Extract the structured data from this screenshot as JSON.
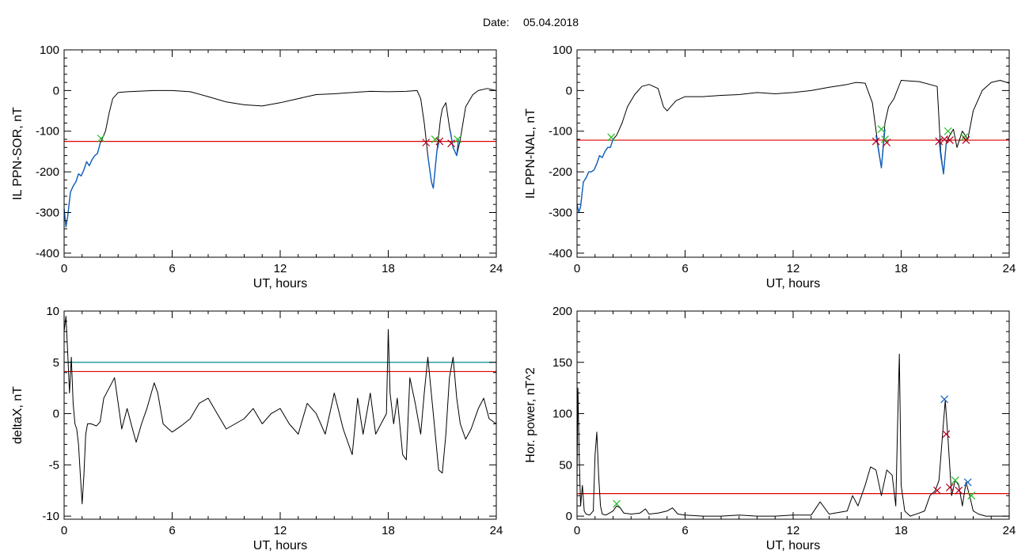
{
  "figure": {
    "title_prefix": "Date:",
    "title_date": "05.04.2018"
  },
  "colors": {
    "signal": "#000000",
    "threshold": "#e00000",
    "threshold2": "#008b8b",
    "segment": "#1060c0",
    "marker_green": "#22bb22",
    "marker_red": "#b00020",
    "marker_blue": "#1060c0"
  },
  "chart_data": [
    {
      "type": "line",
      "id": "p1",
      "xlabel": "UT, hours",
      "ylabel": "IL PPN-SOR, nT",
      "xlim": [
        0,
        24
      ],
      "ylim": [
        -410,
        100
      ],
      "xticks": [
        0,
        6,
        12,
        18,
        24
      ],
      "yticks": [
        100,
        0,
        -100,
        -200,
        -300,
        -400
      ],
      "threshold": -125,
      "series": [
        {
          "role": "signal",
          "x": [
            0,
            0.1,
            0.2,
            0.35,
            0.5,
            0.65,
            0.8,
            0.95,
            1.1,
            1.25,
            1.4,
            1.55,
            1.7,
            1.85,
            2.0,
            2.1,
            2.3,
            2.5,
            2.7,
            3.0,
            3.5,
            4,
            5,
            6,
            7,
            8,
            9,
            10,
            11,
            12,
            13,
            14,
            15,
            16,
            17,
            18,
            19,
            19.6,
            19.8,
            20.0,
            20.2,
            20.4,
            20.5,
            20.7,
            20.9,
            21.0,
            21.2,
            21.4,
            21.6,
            21.8,
            22.0,
            22.3,
            22.7,
            23.0,
            23.5,
            24.0
          ],
          "y": [
            -290,
            -335,
            -310,
            -250,
            -235,
            -225,
            -205,
            -210,
            -195,
            -175,
            -185,
            -170,
            -160,
            -155,
            -130,
            -120,
            -100,
            -55,
            -20,
            -5,
            -3,
            -2,
            0,
            0,
            -3,
            -15,
            -28,
            -35,
            -38,
            -30,
            -20,
            -10,
            -8,
            -5,
            -2,
            -3,
            -2,
            0,
            -20,
            -80,
            -160,
            -225,
            -240,
            -150,
            -70,
            -45,
            -30,
            -90,
            -140,
            -160,
            -120,
            -40,
            -10,
            0,
            5,
            0
          ]
        },
        {
          "role": "segment",
          "x": [
            0,
            0.1,
            0.2,
            0.35,
            0.5,
            0.65,
            0.8,
            0.95,
            1.1,
            1.25,
            1.4,
            1.55,
            1.7,
            1.85,
            2.0
          ],
          "y": [
            -290,
            -335,
            -310,
            -250,
            -235,
            -225,
            -205,
            -210,
            -195,
            -175,
            -185,
            -170,
            -160,
            -155,
            -130
          ]
        },
        {
          "role": "segment",
          "x": [
            20.2,
            20.4,
            20.5,
            20.7,
            20.85
          ],
          "y": [
            -160,
            -225,
            -240,
            -150,
            -120
          ]
        },
        {
          "role": "segment",
          "x": [
            21.45,
            21.6,
            21.8,
            21.9
          ],
          "y": [
            -100,
            -140,
            -160,
            -120
          ]
        }
      ],
      "markers": [
        {
          "x": 2.05,
          "y": -118,
          "color": "green"
        },
        {
          "x": 20.1,
          "y": -128,
          "color": "red"
        },
        {
          "x": 20.6,
          "y": -120,
          "color": "green"
        },
        {
          "x": 20.85,
          "y": -125,
          "color": "red"
        },
        {
          "x": 21.5,
          "y": -130,
          "color": "red"
        },
        {
          "x": 21.85,
          "y": -120,
          "color": "green"
        }
      ]
    },
    {
      "type": "line",
      "id": "p2",
      "xlabel": "UT, hours",
      "ylabel": "IL PPN-NAL, nT",
      "xlim": [
        0,
        24
      ],
      "ylim": [
        -410,
        100
      ],
      "xticks": [
        0,
        6,
        12,
        18,
        24
      ],
      "yticks": [
        100,
        0,
        -100,
        -200,
        -300,
        -400
      ],
      "threshold": -122,
      "series": [
        {
          "role": "signal",
          "x": [
            0,
            0.1,
            0.2,
            0.35,
            0.5,
            0.65,
            0.8,
            0.95,
            1.1,
            1.25,
            1.4,
            1.55,
            1.7,
            1.85,
            2.0,
            2.2,
            2.5,
            2.8,
            3.2,
            3.6,
            4.0,
            4.5,
            4.8,
            5.0,
            5.5,
            6.0,
            7,
            8,
            9,
            10,
            11,
            12,
            13,
            14,
            15,
            15.5,
            16.0,
            16.4,
            16.7,
            16.9,
            17.1,
            17.3,
            17.6,
            18.0,
            19.0,
            20.0,
            20.2,
            20.35,
            20.5,
            20.7,
            20.9,
            21.1,
            21.4,
            21.7,
            22.0,
            22.5,
            23,
            23.5,
            24.0
          ],
          "y": [
            -280,
            -300,
            -285,
            -225,
            -215,
            -200,
            -200,
            -195,
            -180,
            -160,
            -165,
            -150,
            -140,
            -140,
            -120,
            -110,
            -80,
            -40,
            -10,
            10,
            15,
            5,
            -40,
            -50,
            -25,
            -15,
            -15,
            -12,
            -10,
            -5,
            -8,
            -5,
            0,
            8,
            15,
            20,
            18,
            -30,
            -130,
            -190,
            -80,
            -40,
            -20,
            25,
            22,
            10,
            -150,
            -205,
            -130,
            -110,
            -95,
            -140,
            -100,
            -120,
            -50,
            0,
            20,
            25,
            18
          ]
        },
        {
          "role": "segment",
          "x": [
            0,
            0.1,
            0.2,
            0.35,
            0.5,
            0.65,
            0.8,
            0.95,
            1.1,
            1.25,
            1.4,
            1.55,
            1.7,
            1.85,
            2.0
          ],
          "y": [
            -280,
            -300,
            -285,
            -225,
            -215,
            -200,
            -200,
            -195,
            -180,
            -160,
            -165,
            -150,
            -140,
            -140,
            -120
          ]
        },
        {
          "role": "segment",
          "x": [
            16.6,
            16.75,
            16.9,
            17.1
          ],
          "y": [
            -110,
            -150,
            -190,
            -95
          ]
        },
        {
          "role": "segment",
          "x": [
            20.1,
            20.2,
            20.35,
            20.5
          ],
          "y": [
            -120,
            -160,
            -205,
            -130
          ]
        }
      ],
      "markers": [
        {
          "x": 1.9,
          "y": -115,
          "color": "green"
        },
        {
          "x": 16.6,
          "y": -125,
          "color": "red"
        },
        {
          "x": 16.9,
          "y": -95,
          "color": "green"
        },
        {
          "x": 17.1,
          "y": -120,
          "color": "green"
        },
        {
          "x": 17.2,
          "y": -128,
          "color": "red"
        },
        {
          "x": 20.1,
          "y": -125,
          "color": "red"
        },
        {
          "x": 20.4,
          "y": -120,
          "color": "red"
        },
        {
          "x": 20.6,
          "y": -100,
          "color": "green"
        },
        {
          "x": 20.7,
          "y": -122,
          "color": "red"
        },
        {
          "x": 21.5,
          "y": -115,
          "color": "green"
        },
        {
          "x": 21.6,
          "y": -122,
          "color": "red"
        }
      ]
    },
    {
      "type": "line",
      "id": "p3",
      "xlabel": "UT, hours",
      "ylabel": "deltaX, nT",
      "xlim": [
        0,
        24
      ],
      "ylim": [
        -10.3,
        10
      ],
      "xticks": [
        0,
        6,
        12,
        18,
        24
      ],
      "yticks": [
        10,
        5,
        0,
        -5,
        -10
      ],
      "threshold": 4.1,
      "threshold2": 5.0,
      "series": [
        {
          "role": "signal",
          "x": [
            0,
            0.1,
            0.2,
            0.3,
            0.4,
            0.5,
            0.6,
            0.7,
            0.8,
            0.9,
            1.0,
            1.1,
            1.2,
            1.3,
            1.5,
            1.8,
            2.0,
            2.2,
            2.5,
            2.8,
            3.0,
            3.2,
            3.5,
            3.8,
            4.0,
            4.3,
            4.6,
            5.0,
            5.2,
            5.5,
            5.8,
            6.0,
            6.5,
            7.0,
            7.5,
            8.0,
            8.5,
            9.0,
            9.5,
            10.0,
            10.5,
            11.0,
            11.5,
            12.0,
            12.5,
            13.0,
            13.5,
            14.0,
            14.5,
            15.0,
            15.5,
            16.0,
            16.3,
            16.6,
            17.0,
            17.3,
            17.6,
            17.9,
            18.0,
            18.1,
            18.3,
            18.5,
            18.8,
            19.0,
            19.2,
            19.5,
            19.8,
            20.0,
            20.2,
            20.5,
            20.8,
            21.0,
            21.2,
            21.4,
            21.6,
            21.8,
            22.0,
            22.3,
            22.6,
            23.0,
            23.3,
            23.6,
            24.0
          ],
          "y": [
            8,
            9.5,
            6,
            2,
            5.5,
            1,
            -1,
            -1.5,
            -3,
            -6,
            -8.8,
            -6,
            -2,
            -1,
            -1,
            -1.2,
            -0.8,
            1.5,
            2.5,
            3.5,
            1,
            -1.5,
            0.5,
            -1.5,
            -2.8,
            -1,
            0.5,
            3,
            2,
            -1,
            -1.5,
            -1.8,
            -1.2,
            -0.5,
            1,
            1.5,
            0,
            -1.5,
            -1,
            -0.5,
            0.5,
            -1,
            0,
            0.5,
            -1,
            -2,
            1,
            0,
            -2,
            2,
            -1.5,
            -4,
            1.5,
            -2,
            2,
            -2,
            -1,
            0,
            8.2,
            2,
            -1,
            1.5,
            -4,
            -4.5,
            3.5,
            1,
            -2,
            2,
            5.5,
            0,
            -5.5,
            -5.8,
            -2,
            3.5,
            5.5,
            1.5,
            -1,
            -2.5,
            -1.5,
            0.5,
            1.5,
            -0.5,
            -1
          ]
        }
      ],
      "markers": []
    },
    {
      "type": "line",
      "id": "p4",
      "xlabel": "UT, hours",
      "ylabel": "Hor. power, nT^2",
      "xlim": [
        0,
        24
      ],
      "ylim": [
        -3,
        200
      ],
      "xticks": [
        0,
        6,
        12,
        18,
        24
      ],
      "yticks": [
        200,
        150,
        100,
        50,
        0
      ],
      "threshold": 22,
      "series": [
        {
          "role": "signal",
          "x": [
            0,
            0.05,
            0.12,
            0.2,
            0.3,
            0.4,
            0.5,
            0.7,
            0.9,
            1.0,
            1.1,
            1.2,
            1.3,
            1.4,
            1.6,
            1.8,
            2.0,
            2.2,
            2.4,
            2.6,
            3.0,
            3.5,
            3.8,
            4.0,
            4.5,
            5.0,
            5.3,
            5.6,
            6.0,
            7,
            8,
            9,
            10,
            11,
            12,
            13,
            13.5,
            14,
            15,
            15.3,
            15.6,
            16.0,
            16.3,
            16.6,
            16.9,
            17.2,
            17.5,
            17.7,
            17.8,
            17.9,
            18.0,
            18.2,
            18.5,
            19.0,
            19.3,
            19.6,
            19.9,
            20.1,
            20.3,
            20.45,
            20.6,
            20.8,
            21.0,
            21.2,
            21.4,
            21.6,
            21.8,
            22.0,
            22.3,
            22.7,
            23.0,
            23.5,
            24.0
          ],
          "y": [
            35,
            125,
            60,
            10,
            30,
            5,
            2,
            1,
            5,
            60,
            82,
            40,
            10,
            2,
            1,
            3,
            5,
            10,
            8,
            3,
            2,
            3,
            7,
            2,
            3,
            5,
            8,
            2,
            1,
            0,
            0,
            1,
            0,
            0,
            1,
            1,
            14,
            2,
            5,
            20,
            10,
            30,
            48,
            45,
            20,
            45,
            40,
            10,
            90,
            158,
            30,
            5,
            0,
            3,
            5,
            20,
            25,
            35,
            80,
            113,
            75,
            20,
            35,
            30,
            10,
            33,
            20,
            5,
            2,
            0,
            0,
            0,
            0
          ]
        }
      ],
      "markers": [
        {
          "x": 2.2,
          "y": 12,
          "color": "green"
        },
        {
          "x": 20.0,
          "y": 25,
          "color": "red"
        },
        {
          "x": 20.4,
          "y": 114,
          "color": "blue"
        },
        {
          "x": 20.5,
          "y": 80,
          "color": "red"
        },
        {
          "x": 20.7,
          "y": 28,
          "color": "red"
        },
        {
          "x": 21.0,
          "y": 35,
          "color": "green"
        },
        {
          "x": 21.2,
          "y": 25,
          "color": "red"
        },
        {
          "x": 21.7,
          "y": 33,
          "color": "blue"
        },
        {
          "x": 21.9,
          "y": 20,
          "color": "green"
        }
      ]
    }
  ]
}
